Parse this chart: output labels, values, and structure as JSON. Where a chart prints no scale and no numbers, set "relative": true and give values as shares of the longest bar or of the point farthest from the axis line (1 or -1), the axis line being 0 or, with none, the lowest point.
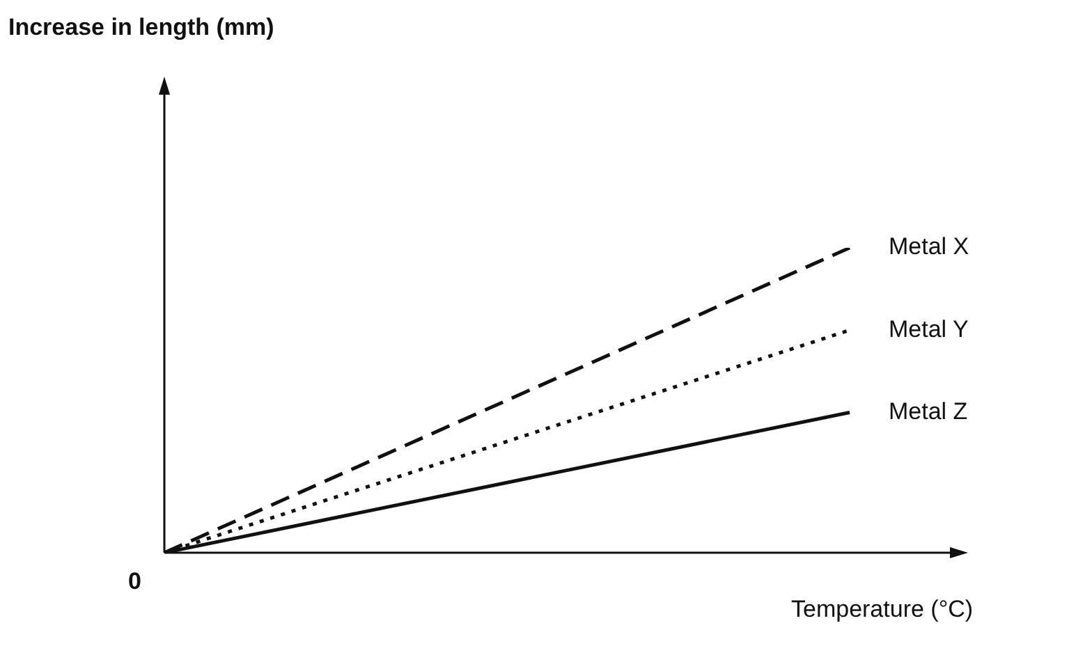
{
  "chart_data": {
    "type": "line",
    "relative": true,
    "xlabel": "Temperature (°C)",
    "annotations": [
      "Increase in length (mm)",
      "0"
    ],
    "categories": [
      null,
      null
    ],
    "legend": false,
    "marker": "none",
    "series": [
      {
        "name": "Metal X",
        "color": "#111111",
        "line_style": "dashed",
        "values": [
          0,
          1
        ]
      },
      {
        "name": "Metal Y",
        "color": "#111111",
        "line_style": "dotted",
        "values": [
          0,
          0.73
        ]
      },
      {
        "name": "Metal Z",
        "color": "#111111",
        "line_style": "solid",
        "values": [
          0,
          0.46
        ]
      }
    ]
  }
}
